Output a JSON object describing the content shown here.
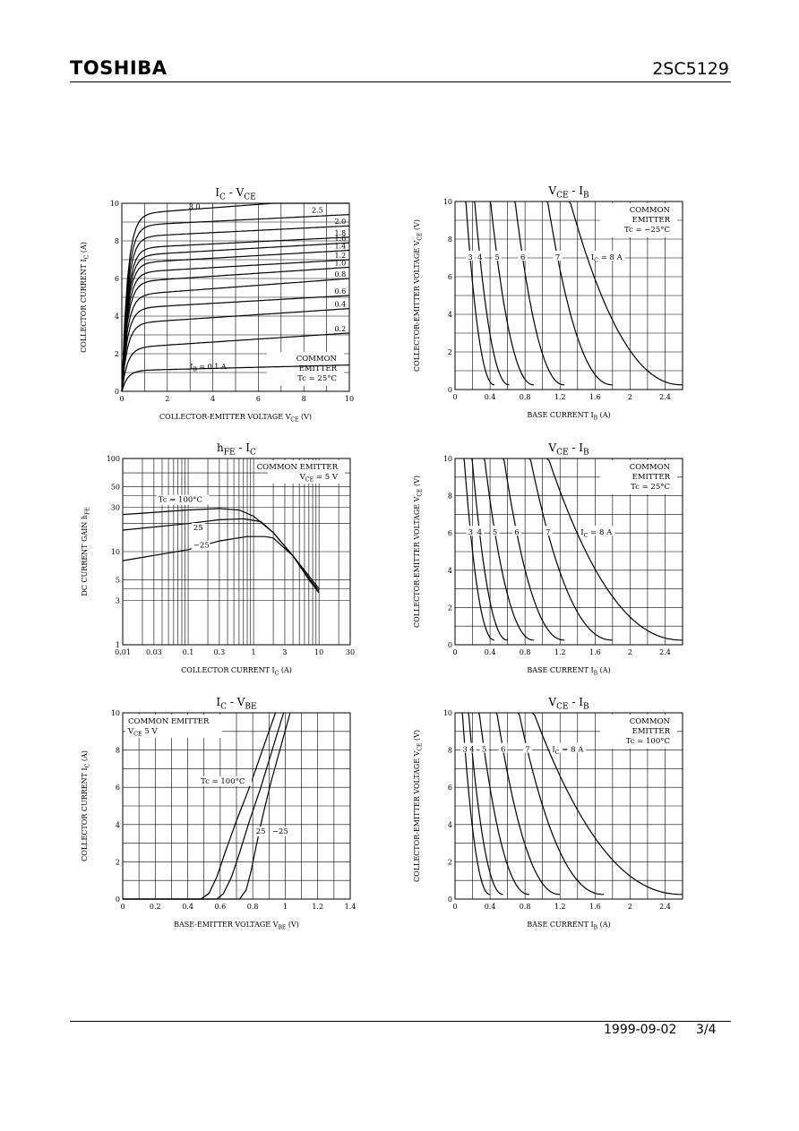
{
  "header": {
    "brand": "TOSHIBA",
    "part_number": "2SC5129"
  },
  "footer": {
    "date": "1999-09-02",
    "page": "3/4"
  },
  "chart_data": [
    {
      "id": "ic_vce",
      "type": "line",
      "title": "I_C - V_CE",
      "xlabel": "COLLECTOR-EMITTER VOLTAGE  V_CE  (V)",
      "ylabel": "COLLECTOR CURRENT  I_C  (A)",
      "xlim": [
        0,
        10
      ],
      "ylim": [
        0,
        10
      ],
      "xticks": [
        0,
        2,
        4,
        6,
        8,
        10
      ],
      "yticks": [
        0,
        2,
        4,
        6,
        8,
        10
      ],
      "grid": true,
      "annotation_lines": [
        "COMMON",
        "EMITTER",
        "Tc = 25°C"
      ],
      "param_prefix": "I_B = ",
      "param_unit": " A",
      "series": [
        {
          "name": "0.1",
          "sat": 1.1,
          "slope": 0.03
        },
        {
          "name": "0.2",
          "sat": 2.3,
          "slope": 0.08
        },
        {
          "name": "0.4",
          "sat": 3.6,
          "slope": 0.08
        },
        {
          "name": "0.6",
          "sat": 4.4,
          "slope": 0.07
        },
        {
          "name": "0.8",
          "sat": 5.1,
          "slope": 0.09
        },
        {
          "name": "1.0",
          "sat": 5.8,
          "slope": 0.08
        },
        {
          "name": "1.2",
          "sat": 6.3,
          "slope": 0.07
        },
        {
          "name": "1.4",
          "sat": 6.8,
          "slope": 0.07
        },
        {
          "name": "1.6",
          "sat": 7.2,
          "slope": 0.07
        },
        {
          "name": "1.8",
          "sat": 7.6,
          "slope": 0.06
        },
        {
          "name": "2.0",
          "sat": 8.2,
          "slope": 0.06
        },
        {
          "name": "2.5",
          "sat": 8.8,
          "slope": 0.06
        },
        {
          "name": "3.0",
          "sat": 9.4,
          "slope": 0.09
        }
      ]
    },
    {
      "id": "vce_ib_m25",
      "type": "line",
      "title": "V_CE - I_B",
      "xlabel": "BASE CURRENT  I_B  (A)",
      "ylabel": "COLLECTOR-EMITTER VOLTAGE  V_CE  (V)",
      "xlim": [
        0,
        2.6
      ],
      "ylim": [
        0,
        10
      ],
      "xticks": [
        0,
        0.4,
        0.8,
        1.2,
        1.6,
        2.0,
        2.4
      ],
      "yticks": [
        0,
        2,
        4,
        6,
        8,
        10
      ],
      "grid": true,
      "annotation_lines": [
        "COMMON",
        "EMITTER",
        "Tc = −25°C"
      ],
      "param_prefix": "I_C = ",
      "param_unit": " A",
      "label_y": 7.0,
      "series": [
        {
          "name": "3",
          "x_at_top": 0.12,
          "x_at_bottom": 0.45
        },
        {
          "name": "4",
          "x_at_top": 0.22,
          "x_at_bottom": 0.62
        },
        {
          "name": "5",
          "x_at_top": 0.4,
          "x_at_bottom": 0.9
        },
        {
          "name": "6",
          "x_at_top": 0.68,
          "x_at_bottom": 1.25
        },
        {
          "name": "7",
          "x_at_top": 1.05,
          "x_at_bottom": 1.8
        },
        {
          "name": "8",
          "x_at_top": 1.3,
          "x_at_bottom": 2.6
        }
      ]
    },
    {
      "id": "hfe_ic",
      "type": "line",
      "title": "h_FE - I_C",
      "xlabel": "COLLECTOR CURRENT  I_C  (A)",
      "ylabel": "DC CURRENT GAIN  h_FE",
      "xscale": "log",
      "yscale": "log",
      "xlim": [
        0.01,
        30
      ],
      "ylim": [
        1,
        100
      ],
      "xticks": [
        0.01,
        0.03,
        0.1,
        0.3,
        1,
        3,
        10,
        30
      ],
      "yticks": [
        1,
        3,
        5,
        10,
        30,
        50,
        100
      ],
      "grid": true,
      "annotation_lines": [
        "COMMON EMITTER",
        "V_CE = 5 V"
      ],
      "series": [
        {
          "name": "Tc = 100°C",
          "x": [
            0.01,
            0.1,
            0.3,
            0.6,
            1.0,
            2.0,
            4.0,
            7.0,
            10.0
          ],
          "y": [
            25,
            28,
            29,
            28,
            24,
            16,
            9,
            5,
            3.6
          ]
        },
        {
          "name": "25",
          "x": [
            0.01,
            0.1,
            0.3,
            0.7,
            1.3,
            2.0,
            4.0,
            7.0,
            10.0
          ],
          "y": [
            17,
            20,
            22,
            22.5,
            21,
            16,
            9,
            5.2,
            3.8
          ]
        },
        {
          "name": "−25",
          "x": [
            0.01,
            0.1,
            0.3,
            0.8,
            1.5,
            2.0,
            4.0,
            7.0,
            10.0
          ],
          "y": [
            8,
            10.5,
            13,
            14.5,
            14.5,
            14,
            9,
            5.5,
            4.0
          ]
        }
      ]
    },
    {
      "id": "vce_ib_25",
      "type": "line",
      "title": "V_CE - I_B",
      "xlabel": "BASE CURRENT  I_B  (A)",
      "ylabel": "COLLECTOR-EMITTER VOLTAGE  V_CE  (V)",
      "xlim": [
        0,
        2.6
      ],
      "ylim": [
        0,
        10
      ],
      "xticks": [
        0,
        0.4,
        0.8,
        1.2,
        1.6,
        2.0,
        2.4
      ],
      "yticks": [
        0,
        2,
        4,
        6,
        8,
        10
      ],
      "grid": true,
      "annotation_lines": [
        "COMMON",
        "EMITTER",
        "Tc = 25°C"
      ],
      "param_prefix": "I_C = ",
      "param_unit": " A",
      "label_y": 6.0,
      "series": [
        {
          "name": "3",
          "x_at_top": 0.1,
          "x_at_bottom": 0.45
        },
        {
          "name": "4",
          "x_at_top": 0.19,
          "x_at_bottom": 0.6
        },
        {
          "name": "5",
          "x_at_top": 0.33,
          "x_at_bottom": 0.9
        },
        {
          "name": "6",
          "x_at_top": 0.55,
          "x_at_bottom": 1.25
        },
        {
          "name": "7",
          "x_at_top": 0.85,
          "x_at_bottom": 1.8
        },
        {
          "name": "8",
          "x_at_top": 1.05,
          "x_at_bottom": 2.6
        }
      ]
    },
    {
      "id": "ic_vbe",
      "type": "line",
      "title": "I_C - V_BE",
      "xlabel": "BASE-EMITTER VOLTAGE  V_BE  (V)",
      "ylabel": "COLLECTOR CURRENT  I_C  (A)",
      "xlim": [
        0,
        1.4
      ],
      "ylim": [
        0,
        10
      ],
      "xticks": [
        0,
        0.2,
        0.4,
        0.6,
        0.8,
        1.0,
        1.2,
        1.4
      ],
      "yticks": [
        0,
        2,
        4,
        6,
        8,
        10
      ],
      "grid": true,
      "annotation_lines": [
        "COMMON EMITTER",
        "V_CE   5 V"
      ],
      "series": [
        {
          "name": "Tc = 100°C",
          "x": [
            0,
            0.48,
            0.53,
            0.58,
            0.63,
            0.7,
            0.78,
            0.86,
            0.94
          ],
          "y": [
            0,
            0,
            0.3,
            1.2,
            2.5,
            4.2,
            6.0,
            8.0,
            10
          ]
        },
        {
          "name": "25",
          "x": [
            0,
            0.58,
            0.62,
            0.67,
            0.72,
            0.78,
            0.85,
            0.92,
            0.99
          ],
          "y": [
            0,
            0,
            0.3,
            1.2,
            2.5,
            4.2,
            6.0,
            8.0,
            10
          ]
        },
        {
          "name": "−25",
          "x": [
            0,
            0.72,
            0.76,
            0.79,
            0.82,
            0.86,
            0.91,
            0.97,
            1.03
          ],
          "y": [
            0,
            0,
            0.5,
            1.5,
            2.8,
            4.4,
            6.2,
            8.1,
            10
          ]
        }
      ]
    },
    {
      "id": "vce_ib_100",
      "type": "line",
      "title": "V_CE - I_B",
      "xlabel": "BASE CURRENT  I_B  (A)",
      "ylabel": "COLLECTOR-EMITTER VOLTAGE  V_CE  (V)",
      "xlim": [
        0,
        2.6
      ],
      "ylim": [
        0,
        10
      ],
      "xticks": [
        0,
        0.4,
        0.8,
        1.2,
        1.6,
        2.0,
        2.4
      ],
      "yticks": [
        0,
        2,
        4,
        6,
        8,
        10
      ],
      "grid": true,
      "annotation_lines": [
        "COMMON",
        "EMITTER",
        "Tc = 100°C"
      ],
      "param_prefix": "I_C = ",
      "param_unit": " A",
      "label_y": 8.0,
      "series": [
        {
          "name": "3",
          "x_at_top": 0.08,
          "x_at_bottom": 0.4
        },
        {
          "name": "4",
          "x_at_top": 0.15,
          "x_at_bottom": 0.55
        },
        {
          "name": "5",
          "x_at_top": 0.27,
          "x_at_bottom": 0.85
        },
        {
          "name": "6",
          "x_at_top": 0.47,
          "x_at_bottom": 1.2
        },
        {
          "name": "7",
          "x_at_top": 0.72,
          "x_at_bottom": 1.7
        },
        {
          "name": "8",
          "x_at_top": 0.88,
          "x_at_bottom": 2.6
        }
      ]
    }
  ]
}
